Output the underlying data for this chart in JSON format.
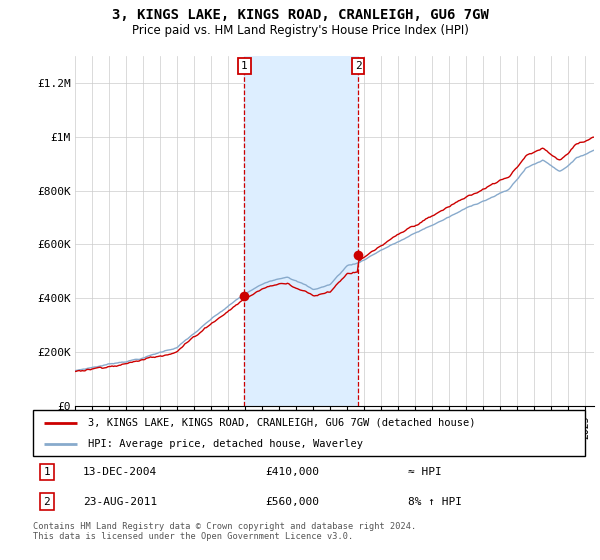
{
  "title": "3, KINGS LAKE, KINGS ROAD, CRANLEIGH, GU6 7GW",
  "subtitle": "Price paid vs. HM Land Registry's House Price Index (HPI)",
  "legend_line1": "3, KINGS LAKE, KINGS ROAD, CRANLEIGH, GU6 7GW (detached house)",
  "legend_line2": "HPI: Average price, detached house, Waverley",
  "annotation1_date": "13-DEC-2004",
  "annotation1_price": "£410,000",
  "annotation1_hpi": "≈ HPI",
  "annotation2_date": "23-AUG-2011",
  "annotation2_price": "£560,000",
  "annotation2_hpi": "8% ↑ HPI",
  "footnote": "Contains HM Land Registry data © Crown copyright and database right 2024.\nThis data is licensed under the Open Government Licence v3.0.",
  "highlight_color": "#ddeeff",
  "red_color": "#cc0000",
  "blue_color": "#88aacc",
  "annotation_box_color": "#cc0000",
  "ylim": [
    0,
    1300000
  ],
  "yticks": [
    0,
    200000,
    400000,
    600000,
    800000,
    1000000,
    1200000
  ],
  "ytick_labels": [
    "£0",
    "£200K",
    "£400K",
    "£600K",
    "£800K",
    "£1M",
    "£1.2M"
  ],
  "sale1_x": 2004.96,
  "sale1_y": 410000,
  "sale2_x": 2011.65,
  "sale2_y": 560000,
  "xmin": 1995,
  "xmax": 2025.5
}
